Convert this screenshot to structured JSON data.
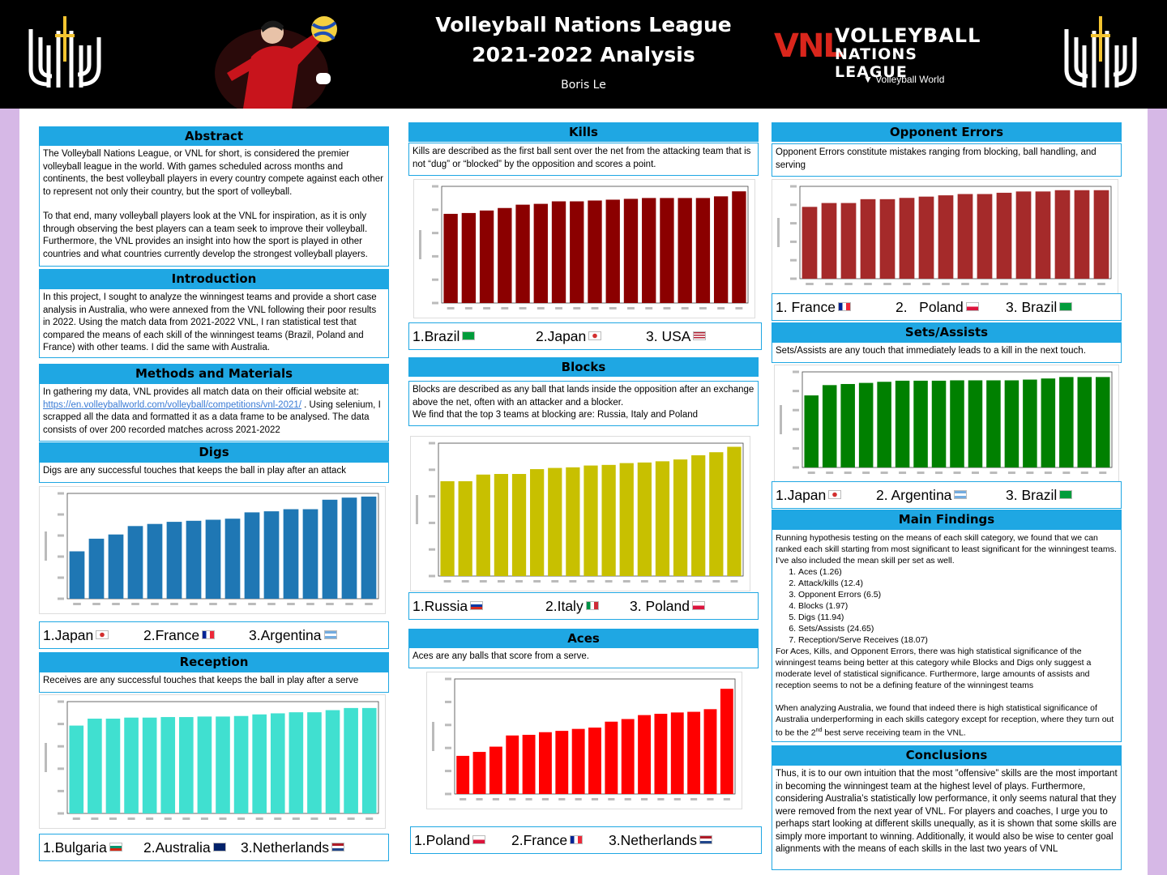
{
  "header": {
    "title_line1": "Volleyball Nations League",
    "title_line2": "2021-2022 Analysis",
    "author": "Boris Le",
    "vnl_mark": "VNL",
    "vnl_line1": "VOLLEYBALL",
    "vnl_line2": "NATIONS LEAGUE",
    "vnl_line3": "Volleyball World"
  },
  "abstract": {
    "heading": "Abstract",
    "p1": "The Volleyball Nations League, or VNL for short, is considered the premier volleyball league in the world. With games scheduled across months and continents, the best volleyball players in every country compete against each other to represent not only their country, but the sport of volleyball.",
    "p2": "To that end, many volleyball players look at the VNL for inspiration, as it is only through observing the best players can a team seek to improve their volleyball. Furthermore, the VNL provides an insight into how the sport is played in other countries and what countries currently develop the strongest volleyball players."
  },
  "introduction": {
    "heading": "Introduction",
    "text": "In this project, I sought to analyze the winningest teams and provide a short case analysis in Australia, who were annexed from the VNL following their poor results in 2022. Using the match data from 2021-2022 VNL, I ran statistical test that compared the means of each skill of the winningest teams (Brazil, Poland and France) with other teams. I did the same with Australia."
  },
  "methods": {
    "heading": "Methods and Materials",
    "text_before": "In gathering my data, VNL provides all match data on their official website at: ",
    "link": "https://en.volleyballworld.com/volleyball/competitions/vnl-2021/",
    "text_after": " . Using selenium, I scrapped all the data and formatted it as a data frame to be analysed. The data consists of over 200 recorded matches across 2021-2022"
  },
  "digs": {
    "heading": "Digs",
    "text": "Digs are any successful touches that keeps the ball in play after an attack",
    "rank": [
      "1.Japan",
      "2.France",
      "3.Argentina"
    ],
    "color": "#1f77b4"
  },
  "reception": {
    "heading": "Reception",
    "text": "Receives are any successful touches that keeps the ball in play after a serve",
    "rank": [
      "1.Bulgaria",
      "2.Australia",
      "3.Netherlands"
    ],
    "color": "#40e0d0"
  },
  "kills": {
    "heading": "Kills",
    "text": "Kills are described as the first ball sent over the net from the attacking team that is not “dug” or “blocked” by the opposition and scores a point.",
    "rank": [
      "1.Brazil",
      "2.Japan",
      "3. USA"
    ],
    "color": "#8b0000"
  },
  "blocks": {
    "heading": "Blocks",
    "text1": "Blocks are described as any ball that lands inside the opposition after an exchange above the net, often with an attacker and a blocker.",
    "text2": "We find that the top 3 teams at blocking are: Russia, Italy and Poland",
    "rank": [
      "1.Russia",
      "2.Italy",
      "3. Poland"
    ],
    "color": "#c8c000"
  },
  "aces": {
    "heading": "Aces",
    "text": "Aces are any balls that score from a serve.",
    "rank": [
      "1.Poland",
      "2.France",
      "3.Netherlands"
    ],
    "color": "#ff0000"
  },
  "opp_errors": {
    "heading": "Opponent Errors",
    "text": "Opponent Errors constitute mistakes ranging from blocking, ball handling, and serving",
    "rank": [
      "1. France",
      "2.   Poland",
      "3. Brazil"
    ],
    "color": "#a52a2a"
  },
  "sets": {
    "heading": "Sets/Assists",
    "text": "Sets/Assists are any touch that immediately leads to a kill in the next touch.",
    "rank": [
      "1.Japan",
      "2. Argentina",
      "3. Brazil"
    ],
    "color": "#008000"
  },
  "findings": {
    "heading": "Main Findings",
    "intro": "Running hypothesis testing on the means of each skill category, we found that we can ranked each skill starting from most significant to least significant for the winningest teams. I’ve also included the mean skill per set as well.",
    "items": [
      "Aces (1.26)",
      "Attack/kills (12.4)",
      "Opponent Errors (6.5)",
      "Blocks (1.97)",
      "Digs (11.94)",
      "Sets/Assists (24.65)",
      "Reception/Serve Receives (18.07)"
    ],
    "p2": "For Aces, Kills, and Opponent Errors, there was high statistical significance of the winningest teams being better at this category while Blocks and Digs only suggest a moderate level of statistical significance. Furthermore, large amounts of assists and reception seems to not be a defining feature of the winningest teams",
    "p3a": "When analyzing Australia, we found that indeed there is high statistical significance of Australia underperforming in each skills category except for reception, where they turn out to be the 2",
    "p3sup": "nd",
    "p3b": " best serve receiving team in the VNL."
  },
  "conclusions": {
    "heading": "Conclusions",
    "text": "Thus, it is to our own intuition that the most ”offensive” skills are the most important in becoming the winningest team at the highest level of plays. Furthermore, considering Australia’s statistically low performance, it only seems natural that they were removed from the next year of VNL. For players and coaches, I urge you to perhaps start looking at different skills unequally, as it is shown that some skills are simply more important to winning. Additionally, it would also be wise to center goal alignments with the means of each skills in the last two years of VNL"
  },
  "chart_data": [
    {
      "type": "bar",
      "name": "digs",
      "values": [
        4.5,
        5.7,
        6.1,
        6.9,
        7.1,
        7.3,
        7.4,
        7.5,
        7.6,
        8.2,
        8.3,
        8.5,
        8.5,
        9.4,
        9.6,
        9.7
      ],
      "ylim": [
        0,
        10
      ]
    },
    {
      "type": "bar",
      "name": "reception",
      "values": [
        16.5,
        17.8,
        17.8,
        18.0,
        18.0,
        18.1,
        18.1,
        18.2,
        18.2,
        18.3,
        18.6,
        18.8,
        19.0,
        19.0,
        19.4,
        19.8,
        19.8
      ],
      "ylim": [
        0,
        21
      ]
    },
    {
      "type": "bar",
      "name": "kills",
      "values": [
        10.7,
        10.8,
        11.1,
        11.4,
        11.8,
        11.9,
        12.2,
        12.2,
        12.3,
        12.4,
        12.5,
        12.6,
        12.6,
        12.6,
        12.6,
        12.8,
        13.4
      ],
      "ylim": [
        0,
        14
      ]
    },
    {
      "type": "bar",
      "name": "blocks",
      "values": [
        1.57,
        1.57,
        1.68,
        1.69,
        1.69,
        1.77,
        1.79,
        1.8,
        1.83,
        1.84,
        1.87,
        1.88,
        1.9,
        1.93,
        2.0,
        2.05,
        2.14
      ],
      "ylim": [
        0,
        2.2
      ]
    },
    {
      "type": "bar",
      "name": "aces",
      "values": [
        0.58,
        0.64,
        0.72,
        0.89,
        0.9,
        0.94,
        0.96,
        0.99,
        1.01,
        1.1,
        1.14,
        1.2,
        1.22,
        1.24,
        1.25,
        1.29,
        1.6
      ],
      "ylim": [
        0,
        1.75
      ]
    },
    {
      "type": "bar",
      "name": "opp_errors",
      "values": [
        5.6,
        5.9,
        5.9,
        6.2,
        6.2,
        6.3,
        6.4,
        6.5,
        6.6,
        6.6,
        6.7,
        6.8,
        6.8,
        6.9,
        6.9,
        6.9
      ],
      "ylim": [
        0,
        7.2
      ]
    },
    {
      "type": "bar",
      "name": "sets",
      "values": [
        19.6,
        22.4,
        22.7,
        23.0,
        23.3,
        23.6,
        23.6,
        23.6,
        23.7,
        23.7,
        23.7,
        23.7,
        23.9,
        24.2,
        24.6,
        24.6,
        24.6
      ],
      "ylim": [
        0,
        26
      ]
    }
  ]
}
